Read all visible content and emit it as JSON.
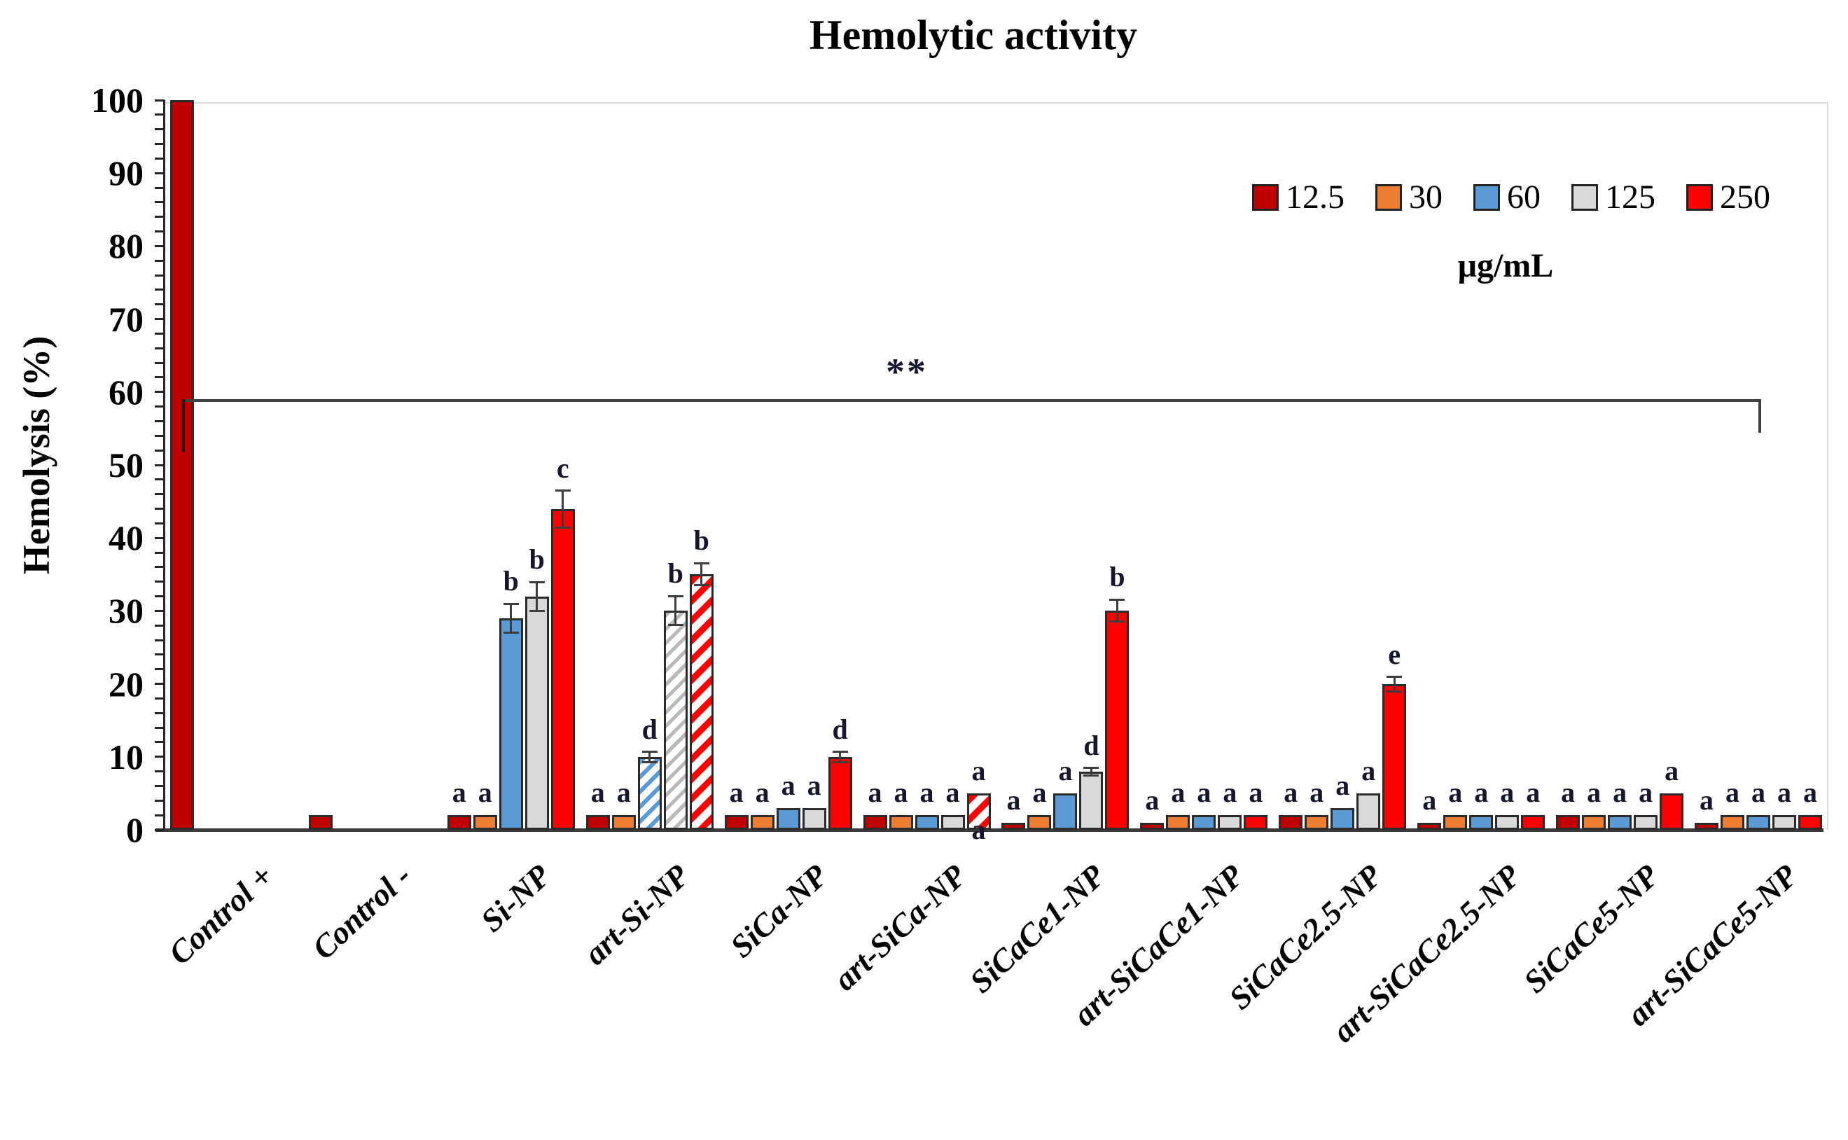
{
  "chart_data": {
    "type": "bar",
    "title": "Hemolytic activity",
    "ylabel": "Hemolysis (%)",
    "ylim": [
      0,
      100
    ],
    "ytick_step": 10,
    "minor_tick_step": 2,
    "ytick_labels": [
      "0",
      "10",
      "20",
      "30",
      "40",
      "50",
      "60",
      "70",
      "80",
      "90",
      "100"
    ],
    "grid": false,
    "legend_position": "top-right-inside",
    "legend_title": "μg/mL",
    "series_labels": [
      "12.5",
      "30",
      "60",
      "125",
      "250"
    ],
    "series_colors": [
      "#C00000",
      "#ED7D31",
      "#5B9BD5",
      "#D9D9D9",
      "#FF0000"
    ],
    "categories": [
      "Control +",
      "Control -",
      "Si-NP",
      "art-Si-NP",
      "SiCa-NP",
      "art-SiCa-NP",
      "SiCaCe1-NP",
      "art-SiCaCe1-NP",
      "SiCaCe2.5-NP",
      "art-SiCaCe2.5-NP",
      "SiCaCe5-NP",
      "art-SiCaCe5-NP"
    ],
    "groups": [
      {
        "category": "Control +",
        "values": [
          100,
          null,
          null,
          null,
          null
        ],
        "errors": [
          null,
          null,
          null,
          null,
          null
        ],
        "letters": [
          null,
          null,
          null,
          null,
          null
        ],
        "hatched": [
          false,
          false,
          false,
          false,
          false
        ]
      },
      {
        "category": "Control -",
        "values": [
          2,
          null,
          null,
          null,
          null
        ],
        "errors": [
          null,
          null,
          null,
          null,
          null
        ],
        "letters": [
          null,
          null,
          null,
          null,
          null
        ],
        "hatched": [
          false,
          false,
          false,
          false,
          false
        ]
      },
      {
        "category": "Si-NP",
        "values": [
          2,
          2,
          29,
          32,
          44
        ],
        "errors": [
          null,
          null,
          2,
          2,
          2.5
        ],
        "letters": [
          "a",
          "a",
          "b",
          "b",
          "c"
        ],
        "hatched": [
          false,
          false,
          false,
          false,
          false
        ]
      },
      {
        "category": "art-Si-NP",
        "values": [
          2,
          2,
          10,
          30,
          35
        ],
        "errors": [
          null,
          null,
          0.7,
          2,
          1.5
        ],
        "letters": [
          "a",
          "a",
          "d",
          "b",
          "b"
        ],
        "hatched": [
          false,
          false,
          true,
          true,
          true
        ]
      },
      {
        "category": "SiCa-NP",
        "values": [
          2,
          2,
          3,
          3,
          10
        ],
        "errors": [
          null,
          null,
          null,
          null,
          0.7
        ],
        "letters": [
          "a",
          "a",
          "a",
          "a",
          "d"
        ],
        "hatched": [
          false,
          false,
          false,
          false,
          false
        ]
      },
      {
        "category": "art-SiCa-NP",
        "values": [
          2,
          2,
          2,
          2,
          5
        ],
        "errors": [
          null,
          null,
          null,
          null,
          null
        ],
        "letters": [
          "a",
          "a",
          "a",
          "a",
          "a"
        ],
        "hatched": [
          false,
          false,
          false,
          false,
          true
        ],
        "extra_below": {
          "series_index": 4,
          "text": "a"
        }
      },
      {
        "category": "SiCaCe1-NP",
        "values": [
          1,
          2,
          5,
          8,
          30
        ],
        "errors": [
          null,
          null,
          null,
          0.5,
          1.5
        ],
        "letters": [
          "a",
          "a",
          "a",
          "d",
          "b"
        ],
        "hatched": [
          false,
          false,
          false,
          false,
          false
        ]
      },
      {
        "category": "art-SiCaCe1-NP",
        "values": [
          1,
          2,
          2,
          2,
          2
        ],
        "errors": [
          null,
          null,
          null,
          null,
          null
        ],
        "letters": [
          "a",
          "a",
          "a",
          "a",
          "a"
        ],
        "hatched": [
          false,
          false,
          false,
          false,
          false
        ]
      },
      {
        "category": "SiCaCe2.5-NP",
        "values": [
          2,
          2,
          3,
          5,
          20
        ],
        "errors": [
          null,
          null,
          null,
          null,
          1
        ],
        "letters": [
          "a",
          "a",
          "a",
          "a",
          "e"
        ],
        "hatched": [
          false,
          false,
          false,
          false,
          false
        ]
      },
      {
        "category": "art-SiCaCe2.5-NP",
        "values": [
          1,
          2,
          2,
          2,
          2
        ],
        "errors": [
          null,
          null,
          null,
          null,
          null
        ],
        "letters": [
          "a",
          "a",
          "a",
          "a",
          "a"
        ],
        "hatched": [
          false,
          false,
          false,
          false,
          false
        ]
      },
      {
        "category": "SiCaCe5-NP",
        "values": [
          2,
          2,
          2,
          2,
          5
        ],
        "errors": [
          null,
          null,
          null,
          null,
          null
        ],
        "letters": [
          "a",
          "a",
          "a",
          "a",
          "a"
        ],
        "hatched": [
          false,
          false,
          false,
          false,
          false
        ]
      },
      {
        "category": "art-SiCaCe5-NP",
        "values": [
          1,
          2,
          2,
          2,
          2
        ],
        "errors": [
          null,
          null,
          null,
          null,
          null
        ],
        "letters": [
          "a",
          "a",
          "a",
          "a",
          "a"
        ],
        "hatched": [
          false,
          false,
          false,
          false,
          false
        ]
      }
    ],
    "significance": {
      "text": "**",
      "level_percent": 59,
      "from_category": "Control +",
      "to_category": "art-SiCaCe5-NP"
    }
  },
  "legend": {
    "items": [
      {
        "label": "12.5"
      },
      {
        "label": "30"
      },
      {
        "label": "60"
      },
      {
        "label": "125"
      },
      {
        "label": "250"
      }
    ],
    "unit": "μg/mL"
  },
  "header": {
    "title": "Hemolytic activity"
  },
  "y_axis": {
    "title": "Hemolysis (%)"
  }
}
